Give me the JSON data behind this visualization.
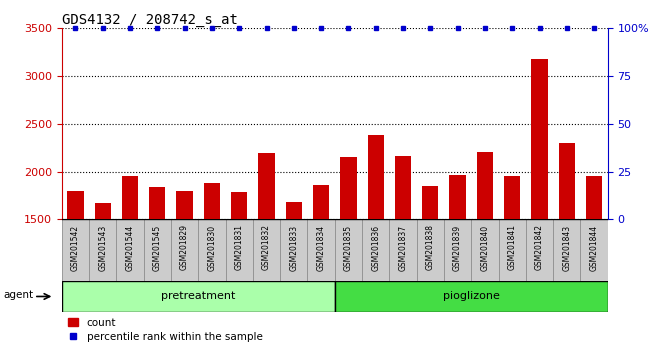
{
  "title": "GDS4132 / 208742_s_at",
  "samples": [
    "GSM201542",
    "GSM201543",
    "GSM201544",
    "GSM201545",
    "GSM201829",
    "GSM201830",
    "GSM201831",
    "GSM201832",
    "GSM201833",
    "GSM201834",
    "GSM201835",
    "GSM201836",
    "GSM201837",
    "GSM201838",
    "GSM201839",
    "GSM201840",
    "GSM201841",
    "GSM201842",
    "GSM201843",
    "GSM201844"
  ],
  "counts": [
    1800,
    1670,
    1950,
    1840,
    1800,
    1880,
    1790,
    2200,
    1680,
    1860,
    2150,
    2380,
    2160,
    1855,
    1970,
    2210,
    1955,
    3180,
    2300,
    1950
  ],
  "percentile_rank": [
    100,
    100,
    100,
    100,
    100,
    100,
    100,
    100,
    100,
    100,
    100,
    100,
    100,
    100,
    100,
    100,
    100,
    100,
    100,
    100
  ],
  "bar_color": "#cc0000",
  "dot_color": "#0000cc",
  "ylim_left": [
    1500,
    3500
  ],
  "ylim_right": [
    0,
    100
  ],
  "yticks_left": [
    1500,
    2000,
    2500,
    3000,
    3500
  ],
  "yticks_right": [
    0,
    25,
    50,
    75,
    100
  ],
  "pretreatment_color": "#aaffaa",
  "pioglizone_color": "#44dd44",
  "group_border_color": "#000000",
  "agent_label": "agent",
  "legend_count_label": "count",
  "legend_percentile_label": "percentile rank within the sample",
  "title_fontsize": 10,
  "axis_color_left": "#cc0000",
  "axis_color_right": "#0000cc",
  "col_bg_color": "#cccccc",
  "col_border_color": "#888888"
}
